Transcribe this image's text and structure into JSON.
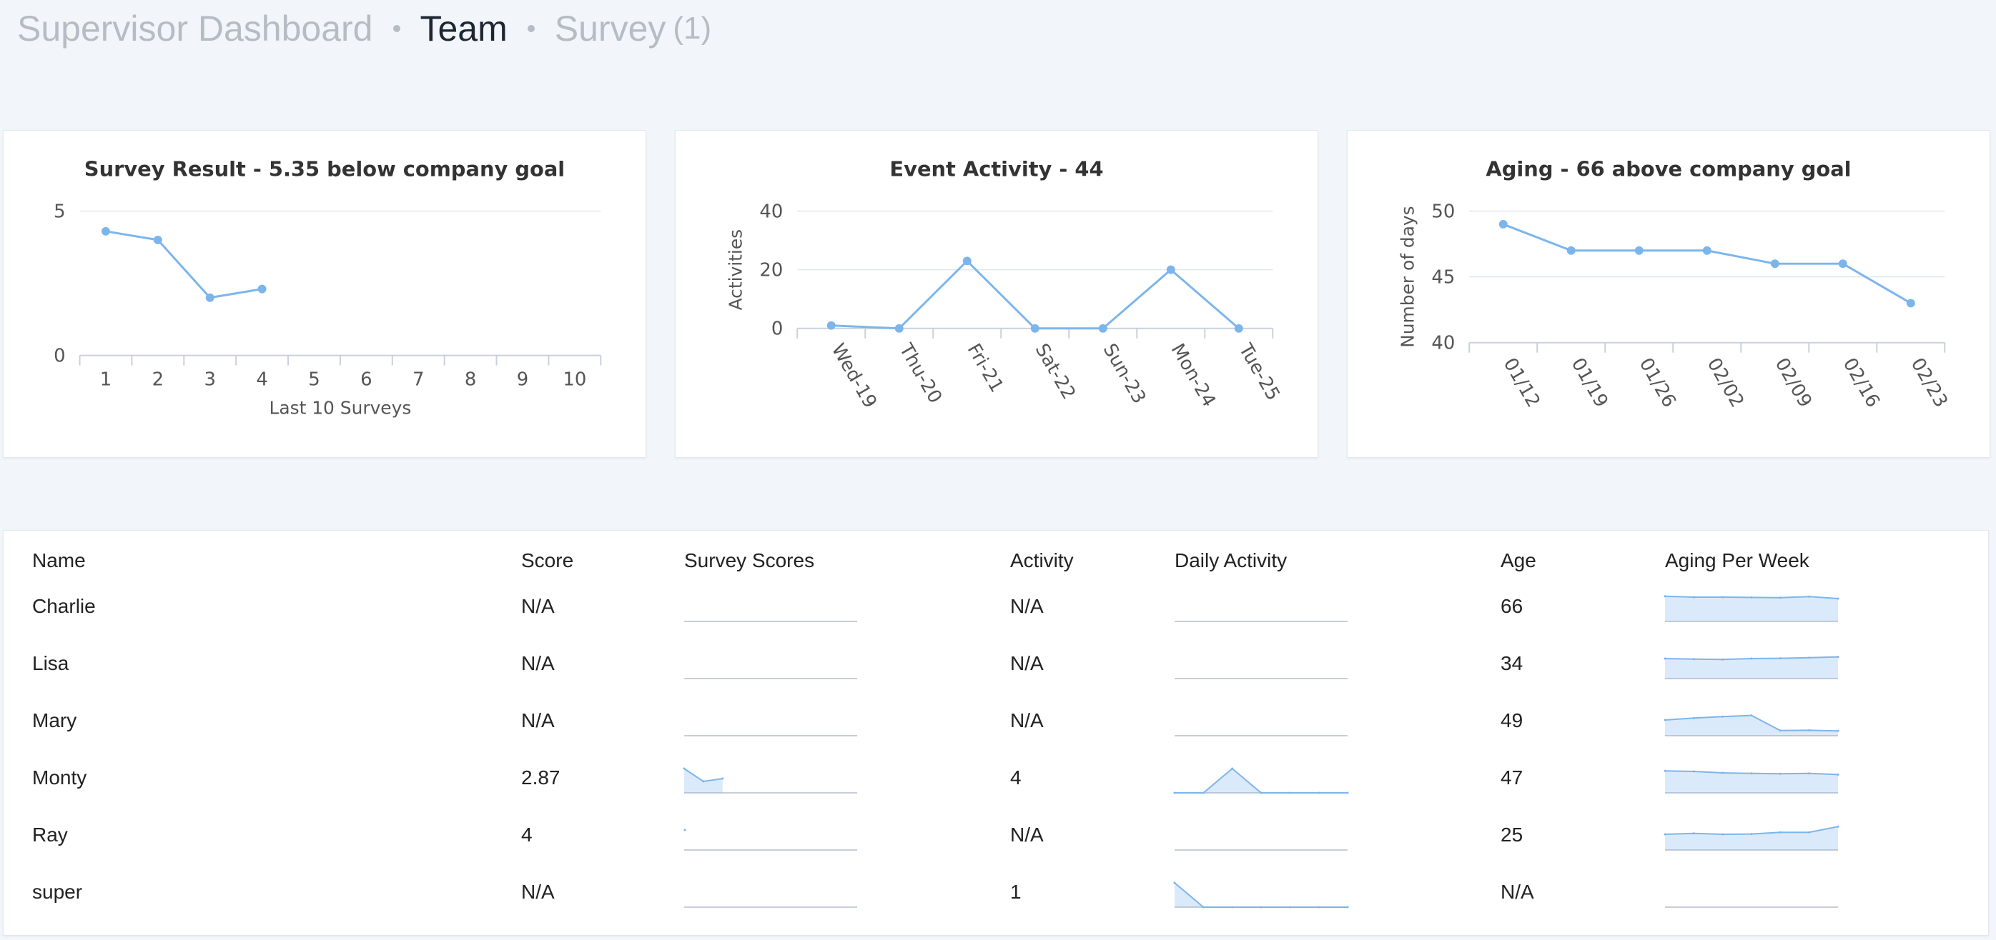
{
  "breadcrumb": {
    "items": [
      "Supervisor Dashboard",
      "Team",
      "Survey"
    ],
    "survey_count": "(1)"
  },
  "charts": {
    "survey": {
      "type": "line",
      "title": "Survey Result - 5.35 below company goal",
      "xlabel": "Last 10 Surveys",
      "ylabel": "",
      "categories": [
        "1",
        "2",
        "3",
        "4",
        "5",
        "6",
        "7",
        "8",
        "9",
        "10"
      ],
      "values": [
        4.3,
        4.0,
        2.0,
        2.3,
        null,
        null,
        null,
        null,
        null,
        null
      ],
      "ylim": [
        0,
        5
      ],
      "yticks": [
        0,
        5
      ],
      "grid": true,
      "legend": "none"
    },
    "event": {
      "type": "line",
      "title": "Event Activity - 44",
      "xlabel": "",
      "ylabel": "Activities",
      "categories": [
        "Wed-19",
        "Thu-20",
        "Fri-21",
        "Sat-22",
        "Sun-23",
        "Mon-24",
        "Tue-25"
      ],
      "values": [
        1,
        0,
        23,
        0,
        0,
        20,
        0
      ],
      "ylim": [
        0,
        40
      ],
      "yticks": [
        0,
        20,
        40
      ],
      "grid": true,
      "legend": "none"
    },
    "aging": {
      "type": "line",
      "title": "Aging - 66 above company goal",
      "xlabel": "",
      "ylabel": "Number of days",
      "categories": [
        "01/12",
        "01/19",
        "01/26",
        "02/02",
        "02/09",
        "02/16",
        "02/23"
      ],
      "values": [
        49,
        47,
        47,
        47,
        46,
        46,
        43
      ],
      "ylim": [
        40,
        50
      ],
      "yticks": [
        40,
        45,
        50
      ],
      "grid": true,
      "legend": "none"
    }
  },
  "table": {
    "headers": {
      "name": "Name",
      "score": "Score",
      "survey_scores": "Survey Scores",
      "activity": "Activity",
      "daily_activity": "Daily Activity",
      "age": "Age",
      "aging_per_week": "Aging Per Week"
    },
    "rows": [
      {
        "name": "Charlie",
        "score": "N/A",
        "activity": "N/A",
        "age": "66",
        "survey_scores": [],
        "daily_activity": [],
        "aging_per_week": [
          0.88,
          0.85,
          0.85,
          0.84,
          0.83,
          0.87,
          0.8
        ]
      },
      {
        "name": "Lisa",
        "score": "N/A",
        "activity": "N/A",
        "age": "34",
        "survey_scores": [],
        "daily_activity": [],
        "aging_per_week": [
          0.7,
          0.68,
          0.67,
          0.7,
          0.71,
          0.73,
          0.76
        ]
      },
      {
        "name": "Mary",
        "score": "N/A",
        "activity": "N/A",
        "age": "49",
        "survey_scores": [],
        "daily_activity": [],
        "aging_per_week": [
          0.55,
          0.62,
          0.67,
          0.71,
          0.18,
          0.19,
          0.17
        ]
      },
      {
        "name": "Monty",
        "score": "2.87",
        "activity": "4",
        "age": "47",
        "survey_scores": [
          0.85,
          0.4,
          0.5
        ],
        "daily_activity": [
          0,
          0,
          0.85,
          0,
          0,
          0,
          0
        ],
        "aging_per_week": [
          0.77,
          0.75,
          0.7,
          0.68,
          0.67,
          0.68,
          0.64
        ]
      },
      {
        "name": "Ray",
        "score": "4",
        "activity": "N/A",
        "age": "25",
        "survey_scores": [
          0.7
        ],
        "daily_activity": [],
        "aging_per_week": [
          0.55,
          0.58,
          0.55,
          0.56,
          0.62,
          0.62,
          0.82
        ]
      },
      {
        "name": "super",
        "score": "N/A",
        "activity": "1",
        "age": "N/A",
        "survey_scores": [],
        "daily_activity": [
          0.85,
          0,
          0,
          0,
          0,
          0,
          0
        ],
        "aging_per_week": []
      }
    ]
  },
  "colors": {
    "series": "#7cb5ec",
    "grid": "#e2e6ea",
    "background": "#f2f6fa"
  }
}
